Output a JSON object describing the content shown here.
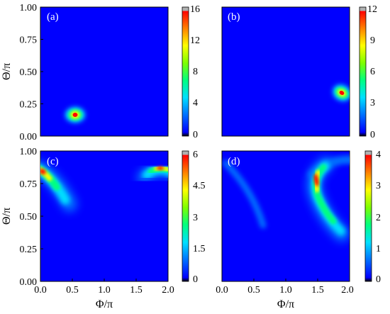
{
  "colors": {
    "background": "#0000ff",
    "colormap": [
      "#000000",
      "#0000ff",
      "#0070ff",
      "#00e0ff",
      "#00ff80",
      "#7fff00",
      "#ffff00",
      "#ff8000",
      "#ff0000",
      "#b0b0b0"
    ]
  },
  "chart_data": [
    {
      "type": "heatmap",
      "panel_label": "(a)",
      "xlabel": "",
      "ylabel": "Θ/π",
      "xlim": [
        0,
        2
      ],
      "ylim": [
        0,
        1
      ],
      "x_ticks": [],
      "y_ticks": [
        "0.00",
        "0.25",
        "0.50",
        "0.75",
        "1.00"
      ],
      "colorbar": {
        "range": [
          0,
          16
        ],
        "ticks": [
          "0",
          "4",
          "8",
          "12",
          "16"
        ]
      },
      "peaks": [
        {
          "phi": 0.55,
          "theta": 0.165,
          "value": 16
        }
      ]
    },
    {
      "type": "heatmap",
      "panel_label": "(b)",
      "xlabel": "",
      "ylabel": "",
      "xlim": [
        0,
        2
      ],
      "ylim": [
        0,
        1
      ],
      "x_ticks": [],
      "y_ticks": [],
      "colorbar": {
        "range": [
          0,
          12
        ],
        "ticks": [
          "0",
          "3",
          "6",
          "9",
          "12"
        ]
      },
      "peaks": [
        {
          "phi": 1.72,
          "theta": 0.345,
          "value": 12
        }
      ]
    },
    {
      "type": "heatmap",
      "panel_label": "(c)",
      "xlabel": "Φ/π",
      "ylabel": "Θ/π",
      "xlim": [
        0,
        2
      ],
      "ylim": [
        0,
        1
      ],
      "x_ticks": [
        "0.0",
        "0.5",
        "1.0",
        "1.5",
        "2.0"
      ],
      "y_ticks": [
        "0.00",
        "0.25",
        "0.50",
        "0.75",
        "1.00"
      ],
      "colorbar": {
        "range": [
          0,
          6
        ],
        "ticks": [
          "0",
          "1.5",
          "3",
          "4.5",
          "6"
        ]
      },
      "peaks": [
        {
          "phi": 0.04,
          "theta": 0.82,
          "value": 6,
          "ridge_to": {
            "phi": 0.42,
            "theta": 0.62
          }
        },
        {
          "phi": 1.82,
          "theta": 0.85,
          "value": 6,
          "ridge_to": {
            "phi": 1.58,
            "theta": 0.8
          }
        }
      ]
    },
    {
      "type": "heatmap",
      "panel_label": "(d)",
      "xlabel": "Φ/π",
      "ylabel": "",
      "xlim": [
        0,
        2
      ],
      "ylim": [
        0,
        1
      ],
      "x_ticks": [
        "0.0",
        "0.5",
        "1.0",
        "1.5",
        "2.0"
      ],
      "y_ticks": [],
      "colorbar": {
        "range": [
          0,
          4
        ],
        "ticks": [
          "0",
          "1",
          "2",
          "3",
          "4"
        ]
      },
      "peaks": [
        {
          "phi": 1.4,
          "theta": 0.75,
          "value": 4
        },
        {
          "phi": 1.52,
          "theta": 0.55,
          "value": 2.5
        },
        {
          "phi": 1.75,
          "theta": 0.32,
          "value": 1.2
        },
        {
          "phi": 0.35,
          "theta": 0.6,
          "value": 0.5
        }
      ]
    }
  ]
}
